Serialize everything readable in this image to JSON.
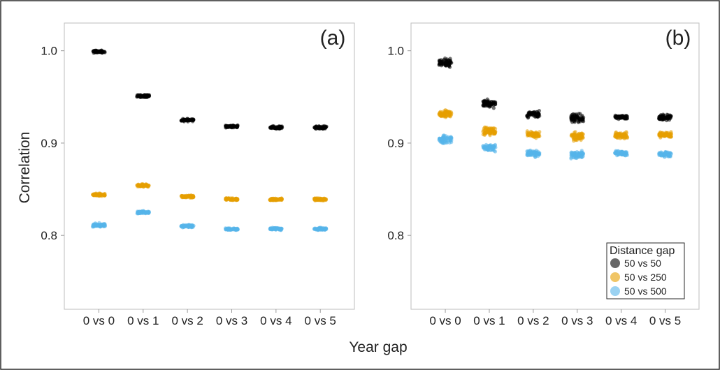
{
  "figure": {
    "xlabel": "Year gap",
    "ylabel": "Correlation"
  },
  "legend": {
    "title": "Distance gap",
    "position": "bottom-right of panel (b)",
    "entries": [
      {
        "label": "50 vs 50",
        "color": "#000000"
      },
      {
        "label": "50 vs 250",
        "color": "#e69f00"
      },
      {
        "label": "50 vs 500",
        "color": "#56b4e9"
      }
    ]
  },
  "chart_data": [
    {
      "type": "scatter",
      "panel_label": "(a)",
      "categories": [
        "0 vs 0",
        "0 vs 1",
        "0 vs 2",
        "0 vs 3",
        "0 vs 4",
        "0 vs 5"
      ],
      "xlabel": "Year gap",
      "ylabel": "Correlation",
      "ylim": [
        0.72,
        1.03
      ],
      "yticks": [
        0.8,
        0.9,
        1.0
      ],
      "ytick_labels": [
        "0.8",
        "0.9",
        "1.0"
      ],
      "grid": false,
      "series": [
        {
          "name": "50 vs 50",
          "color": "#000000",
          "values": [
            0.999,
            0.951,
            0.925,
            0.918,
            0.917,
            0.917
          ],
          "spread": [
            0.002,
            0.002,
            0.002,
            0.002,
            0.002,
            0.002
          ]
        },
        {
          "name": "50 vs 250",
          "color": "#e69f00",
          "values": [
            0.844,
            0.854,
            0.842,
            0.839,
            0.839,
            0.839
          ],
          "spread": [
            0.002,
            0.002,
            0.002,
            0.002,
            0.002,
            0.002
          ]
        },
        {
          "name": "50 vs 500",
          "color": "#56b4e9",
          "values": [
            0.811,
            0.825,
            0.81,
            0.807,
            0.807,
            0.807
          ],
          "spread": [
            0.003,
            0.002,
            0.002,
            0.002,
            0.002,
            0.002
          ]
        }
      ]
    },
    {
      "type": "scatter",
      "panel_label": "(b)",
      "categories": [
        "0 vs 0",
        "0 vs 1",
        "0 vs 2",
        "0 vs 3",
        "0 vs 4",
        "0 vs 5"
      ],
      "xlabel": "Year gap",
      "ylabel": "Correlation",
      "ylim": [
        0.72,
        1.03
      ],
      "yticks": [
        0.8,
        0.9,
        1.0
      ],
      "ytick_labels": [
        "0.8",
        "0.9",
        "1.0"
      ],
      "grid": false,
      "series": [
        {
          "name": "50 vs 50",
          "color": "#000000",
          "values": [
            0.987,
            0.943,
            0.931,
            0.927,
            0.928,
            0.928
          ],
          "spread": [
            0.006,
            0.006,
            0.005,
            0.006,
            0.003,
            0.004
          ]
        },
        {
          "name": "50 vs 250",
          "color": "#e69f00",
          "values": [
            0.932,
            0.913,
            0.909,
            0.907,
            0.908,
            0.909
          ],
          "spread": [
            0.006,
            0.006,
            0.005,
            0.006,
            0.005,
            0.004
          ]
        },
        {
          "name": "50 vs 500",
          "color": "#56b4e9",
          "values": [
            0.904,
            0.895,
            0.889,
            0.887,
            0.889,
            0.888
          ],
          "spread": [
            0.006,
            0.006,
            0.005,
            0.006,
            0.004,
            0.004
          ]
        }
      ]
    }
  ]
}
